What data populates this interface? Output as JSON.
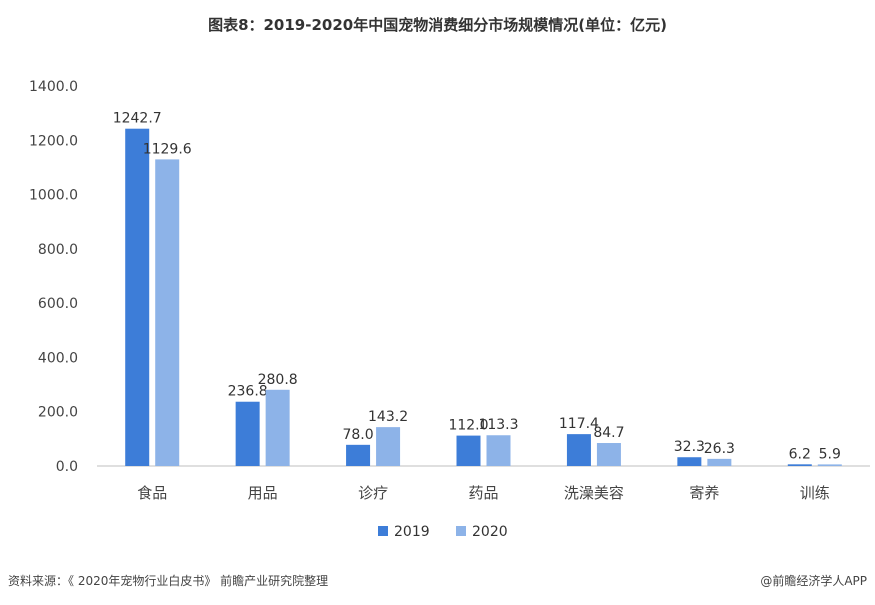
{
  "title": "图表8：2019-2020年中国宠物消费细分市场规模情况(单位：亿元)",
  "footer": {
    "source": "资料来源：《 2020年宠物行业白皮书》 前瞻产业研究院整理",
    "credit": "@前瞻经济学人APP"
  },
  "colors": {
    "s2019": "#3d7dd8",
    "s2020": "#8db3e8"
  },
  "chart_data": {
    "type": "bar",
    "categories": [
      "食品",
      "用品",
      "诊疗",
      "药品",
      "洗澡美容",
      "寄养",
      "训练"
    ],
    "series": [
      {
        "name": "2019",
        "values": [
          1242.7,
          236.8,
          78.0,
          112.0,
          117.4,
          32.3,
          6.2
        ]
      },
      {
        "name": "2020",
        "values": [
          1129.6,
          280.8,
          143.2,
          113.3,
          84.7,
          26.3,
          5.9
        ]
      }
    ],
    "ylim": [
      0,
      1400
    ],
    "yticks": [
      "0.0",
      "200.0",
      "400.0",
      "600.0",
      "800.0",
      "1000.0",
      "1200.0",
      "1400.0"
    ],
    "grid": false,
    "legend": "bottom"
  }
}
